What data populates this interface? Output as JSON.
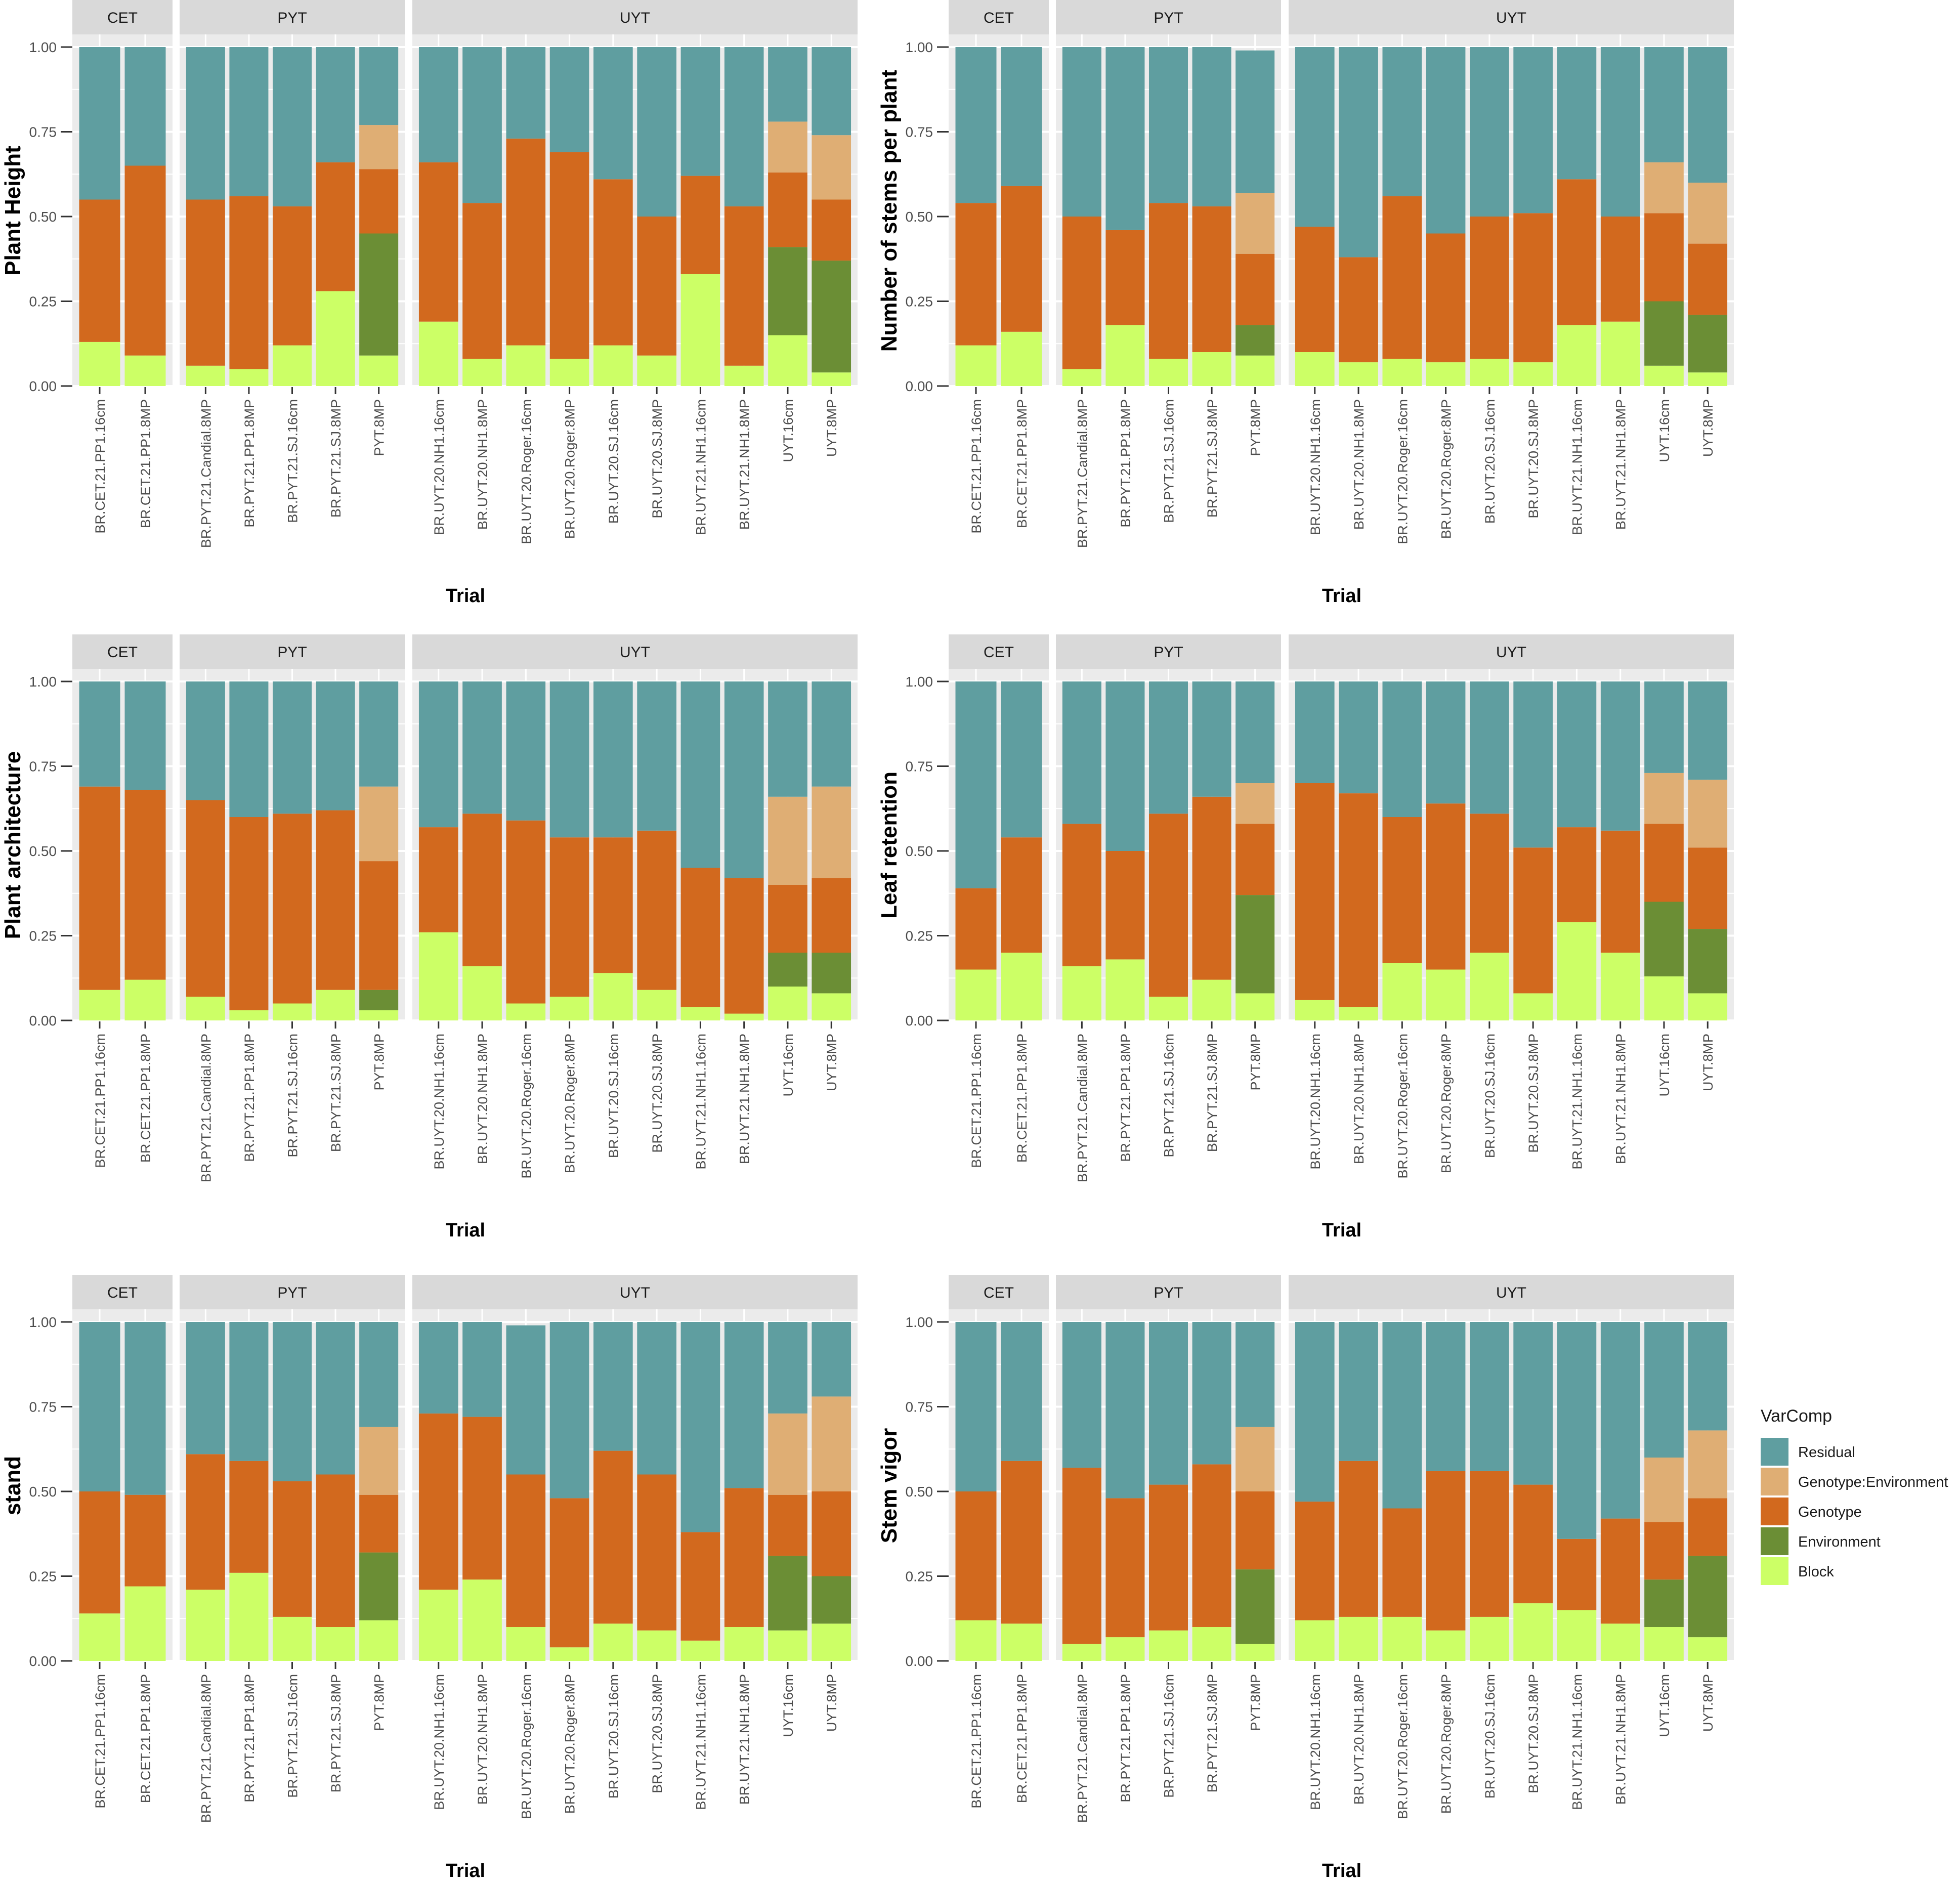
{
  "colors": {
    "Residual": "#5f9ea0",
    "Genotype:Environment": "#dfae74",
    "Genotype": "#d2691e",
    "Environment": "#6b8e35",
    "Block": "#ccff66",
    "panel_bg": "#ebebeb",
    "strip_bg": "#d9d9d9",
    "grid": "#ffffff",
    "text": "#4d4d4d"
  },
  "legend": {
    "title": "VarComp",
    "items": [
      "Residual",
      "Genotype:Environment",
      "Genotype",
      "Environment",
      "Block"
    ]
  },
  "chart_data": [
    {
      "type": "bar",
      "stacked": true,
      "ylabel": "Plant Height",
      "xlabel": "Trial",
      "ylim": [
        0,
        1
      ],
      "yticks": [
        "0.00",
        "0.25",
        "0.50",
        "0.75",
        "1.00"
      ],
      "facets": [
        {
          "name": "CET",
          "categories": [
            "BR.CET.21.PP1.16cm",
            "BR.CET.21.PP1.8MP"
          ]
        },
        {
          "name": "PYT",
          "categories": [
            "BR.PYT.21.Candial.8MP",
            "BR.PYT.21.PP1.8MP",
            "BR.PYT.21.SJ.16cm",
            "BR.PYT.21.SJ.8MP",
            "PYT.8MP"
          ]
        },
        {
          "name": "UYT",
          "categories": [
            "BR.UYT.20.NH1.16cm",
            "BR.UYT.20.NH1.8MP",
            "BR.UYT.20.Roger.16cm",
            "BR.UYT.20.Roger.8MP",
            "BR.UYT.20.SJ.16cm",
            "BR.UYT.20.SJ.8MP",
            "BR.UYT.21.NH1.16cm",
            "BR.UYT.21.NH1.8MP",
            "UYT.16cm",
            "UYT.8MP"
          ]
        }
      ],
      "series": [
        {
          "name": "Block",
          "values": [
            0.13,
            0.09,
            0.06,
            0.05,
            0.12,
            0.28,
            0.09,
            0.19,
            0.08,
            0.12,
            0.08,
            0.12,
            0.09,
            0.33,
            0.06,
            0.15,
            0.04
          ]
        },
        {
          "name": "Environment",
          "values": [
            0,
            0,
            0,
            0,
            0,
            0,
            0.36,
            0,
            0,
            0,
            0,
            0,
            0,
            0,
            0,
            0.26,
            0.33
          ]
        },
        {
          "name": "Genotype",
          "values": [
            0.42,
            0.56,
            0.49,
            0.51,
            0.41,
            0.38,
            0.19,
            0.47,
            0.46,
            0.61,
            0.61,
            0.49,
            0.41,
            0.29,
            0.47,
            0.22,
            0.18
          ]
        },
        {
          "name": "Genotype:Environment",
          "values": [
            0,
            0,
            0,
            0,
            0,
            0,
            0.13,
            0,
            0,
            0,
            0,
            0,
            0,
            0,
            0,
            0.15,
            0.19
          ]
        },
        {
          "name": "Residual",
          "values": [
            0.45,
            0.35,
            0.45,
            0.44,
            0.47,
            0.34,
            0.23,
            0.34,
            0.46,
            0.27,
            0.31,
            0.39,
            0.5,
            0.38,
            0.47,
            0.22,
            0.26
          ]
        }
      ]
    },
    {
      "type": "bar",
      "stacked": true,
      "ylabel": "Number of stems per plant",
      "xlabel": "Trial",
      "ylim": [
        0,
        1
      ],
      "yticks": [
        "0.00",
        "0.25",
        "0.50",
        "0.75",
        "1.00"
      ],
      "facets": [
        {
          "name": "CET",
          "categories": [
            "BR.CET.21.PP1.16cm",
            "BR.CET.21.PP1.8MP"
          ]
        },
        {
          "name": "PYT",
          "categories": [
            "BR.PYT.21.Candial.8MP",
            "BR.PYT.21.PP1.8MP",
            "BR.PYT.21.SJ.16cm",
            "BR.PYT.21.SJ.8MP",
            "PYT.8MP"
          ]
        },
        {
          "name": "UYT",
          "categories": [
            "BR.UYT.20.NH1.16cm",
            "BR.UYT.20.NH1.8MP",
            "BR.UYT.20.Roger.16cm",
            "BR.UYT.20.Roger.8MP",
            "BR.UYT.20.SJ.16cm",
            "BR.UYT.20.SJ.8MP",
            "BR.UYT.21.NH1.16cm",
            "BR.UYT.21.NH1.8MP",
            "UYT.16cm",
            "UYT.8MP"
          ]
        }
      ],
      "series": [
        {
          "name": "Block",
          "values": [
            0.12,
            0.16,
            0.05,
            0.18,
            0.08,
            0.1,
            0.09,
            0.1,
            0.07,
            0.08,
            0.07,
            0.08,
            0.07,
            0.18,
            0.19,
            0.06,
            0.04
          ]
        },
        {
          "name": "Environment",
          "values": [
            0,
            0,
            0,
            0,
            0,
            0,
            0.09,
            0,
            0,
            0,
            0,
            0,
            0,
            0,
            0,
            0.19,
            0.17
          ]
        },
        {
          "name": "Genotype",
          "values": [
            0.42,
            0.43,
            0.45,
            0.28,
            0.46,
            0.43,
            0.21,
            0.37,
            0.31,
            0.48,
            0.38,
            0.42,
            0.44,
            0.43,
            0.31,
            0.26,
            0.21
          ]
        },
        {
          "name": "Genotype:Environment",
          "values": [
            0,
            0,
            0,
            0,
            0,
            0,
            0.18,
            0,
            0,
            0,
            0,
            0,
            0,
            0,
            0,
            0.15,
            0.18
          ]
        },
        {
          "name": "Residual",
          "values": [
            0.46,
            0.41,
            0.5,
            0.54,
            0.46,
            0.47,
            0.42,
            0.53,
            0.62,
            0.44,
            0.55,
            0.5,
            0.49,
            0.39,
            0.5,
            0.34,
            0.4
          ]
        }
      ]
    },
    {
      "type": "bar",
      "stacked": true,
      "ylabel": "Plant architecture",
      "xlabel": "Trial",
      "ylim": [
        0,
        1
      ],
      "yticks": [
        "0.00",
        "0.25",
        "0.50",
        "0.75",
        "1.00"
      ],
      "facets": [
        {
          "name": "CET",
          "categories": [
            "BR.CET.21.PP1.16cm",
            "BR.CET.21.PP1.8MP"
          ]
        },
        {
          "name": "PYT",
          "categories": [
            "BR.PYT.21.Candial.8MP",
            "BR.PYT.21.PP1.8MP",
            "BR.PYT.21.SJ.16cm",
            "BR.PYT.21.SJ.8MP",
            "PYT.8MP"
          ]
        },
        {
          "name": "UYT",
          "categories": [
            "BR.UYT.20.NH1.16cm",
            "BR.UYT.20.NH1.8MP",
            "BR.UYT.20.Roger.16cm",
            "BR.UYT.20.Roger.8MP",
            "BR.UYT.20.SJ.16cm",
            "BR.UYT.20.SJ.8MP",
            "BR.UYT.21.NH1.16cm",
            "BR.UYT.21.NH1.8MP",
            "UYT.16cm",
            "UYT.8MP"
          ]
        }
      ],
      "series": [
        {
          "name": "Block",
          "values": [
            0.09,
            0.12,
            0.07,
            0.03,
            0.05,
            0.09,
            0.03,
            0.26,
            0.16,
            0.05,
            0.07,
            0.14,
            0.09,
            0.04,
            0.02,
            0.1,
            0.08
          ]
        },
        {
          "name": "Environment",
          "values": [
            0,
            0,
            0,
            0,
            0,
            0,
            0.06,
            0,
            0,
            0,
            0,
            0,
            0,
            0,
            0,
            0.1,
            0.12
          ]
        },
        {
          "name": "Genotype",
          "values": [
            0.6,
            0.56,
            0.58,
            0.57,
            0.56,
            0.53,
            0.38,
            0.31,
            0.45,
            0.54,
            0.47,
            0.4,
            0.47,
            0.41,
            0.4,
            0.2,
            0.22
          ]
        },
        {
          "name": "Genotype:Environment",
          "values": [
            0,
            0,
            0,
            0,
            0,
            0,
            0.22,
            0,
            0,
            0,
            0,
            0,
            0,
            0,
            0,
            0.26,
            0.27
          ]
        },
        {
          "name": "Residual",
          "values": [
            0.31,
            0.32,
            0.35,
            0.4,
            0.39,
            0.38,
            0.31,
            0.43,
            0.39,
            0.41,
            0.46,
            0.46,
            0.44,
            0.55,
            0.58,
            0.34,
            0.31
          ]
        }
      ]
    },
    {
      "type": "bar",
      "stacked": true,
      "ylabel": "Leaf retention",
      "xlabel": "Trial",
      "ylim": [
        0,
        1
      ],
      "yticks": [
        "0.00",
        "0.25",
        "0.50",
        "0.75",
        "1.00"
      ],
      "facets": [
        {
          "name": "CET",
          "categories": [
            "BR.CET.21.PP1.16cm",
            "BR.CET.21.PP1.8MP"
          ]
        },
        {
          "name": "PYT",
          "categories": [
            "BR.PYT.21.Candial.8MP",
            "BR.PYT.21.PP1.8MP",
            "BR.PYT.21.SJ.16cm",
            "BR.PYT.21.SJ.8MP",
            "PYT.8MP"
          ]
        },
        {
          "name": "UYT",
          "categories": [
            "BR.UYT.20.NH1.16cm",
            "BR.UYT.20.NH1.8MP",
            "BR.UYT.20.Roger.16cm",
            "BR.UYT.20.Roger.8MP",
            "BR.UYT.20.SJ.16cm",
            "BR.UYT.20.SJ.8MP",
            "BR.UYT.21.NH1.16cm",
            "BR.UYT.21.NH1.8MP",
            "UYT.16cm",
            "UYT.8MP"
          ]
        }
      ],
      "series": [
        {
          "name": "Block",
          "values": [
            0.15,
            0.2,
            0.16,
            0.18,
            0.07,
            0.12,
            0.08,
            0.06,
            0.04,
            0.17,
            0.15,
            0.2,
            0.08,
            0.29,
            0.2,
            0.13,
            0.08
          ]
        },
        {
          "name": "Environment",
          "values": [
            0,
            0,
            0,
            0,
            0,
            0,
            0.29,
            0,
            0,
            0,
            0,
            0,
            0,
            0,
            0,
            0.22,
            0.19
          ]
        },
        {
          "name": "Genotype",
          "values": [
            0.24,
            0.34,
            0.42,
            0.32,
            0.54,
            0.54,
            0.21,
            0.64,
            0.63,
            0.43,
            0.49,
            0.41,
            0.43,
            0.28,
            0.36,
            0.23,
            0.24
          ]
        },
        {
          "name": "Genotype:Environment",
          "values": [
            0,
            0,
            0,
            0,
            0,
            0,
            0.12,
            0,
            0,
            0,
            0,
            0,
            0,
            0,
            0,
            0.15,
            0.2
          ]
        },
        {
          "name": "Residual",
          "values": [
            0.61,
            0.46,
            0.42,
            0.5,
            0.39,
            0.34,
            0.3,
            0.3,
            0.33,
            0.4,
            0.36,
            0.39,
            0.49,
            0.43,
            0.44,
            0.27,
            0.29
          ]
        }
      ]
    },
    {
      "type": "bar",
      "stacked": true,
      "ylabel": "stand",
      "xlabel": "Trial",
      "ylim": [
        0,
        1
      ],
      "yticks": [
        "0.00",
        "0.25",
        "0.50",
        "0.75",
        "1.00"
      ],
      "facets": [
        {
          "name": "CET",
          "categories": [
            "BR.CET.21.PP1.16cm",
            "BR.CET.21.PP1.8MP"
          ]
        },
        {
          "name": "PYT",
          "categories": [
            "BR.PYT.21.Candial.8MP",
            "BR.PYT.21.PP1.8MP",
            "BR.PYT.21.SJ.16cm",
            "BR.PYT.21.SJ.8MP",
            "PYT.8MP"
          ]
        },
        {
          "name": "UYT",
          "categories": [
            "BR.UYT.20.NH1.16cm",
            "BR.UYT.20.NH1.8MP",
            "BR.UYT.20.Roger.16cm",
            "BR.UYT.20.Roger.8MP",
            "BR.UYT.20.SJ.16cm",
            "BR.UYT.20.SJ.8MP",
            "BR.UYT.21.NH1.16cm",
            "BR.UYT.21.NH1.8MP",
            "UYT.16cm",
            "UYT.8MP"
          ]
        }
      ],
      "series": [
        {
          "name": "Block",
          "values": [
            0.14,
            0.22,
            0.21,
            0.26,
            0.13,
            0.1,
            0.12,
            0.21,
            0.24,
            0.1,
            0.04,
            0.11,
            0.09,
            0.06,
            0.1,
            0.09,
            0.11
          ]
        },
        {
          "name": "Environment",
          "values": [
            0,
            0,
            0,
            0,
            0,
            0,
            0.2,
            0,
            0,
            0,
            0,
            0,
            0,
            0,
            0,
            0.22,
            0.14
          ]
        },
        {
          "name": "Genotype",
          "values": [
            0.36,
            0.27,
            0.4,
            0.33,
            0.4,
            0.45,
            0.17,
            0.52,
            0.48,
            0.45,
            0.44,
            0.51,
            0.46,
            0.32,
            0.41,
            0.18,
            0.25
          ]
        },
        {
          "name": "Genotype:Environment",
          "values": [
            0,
            0,
            0,
            0,
            0,
            0,
            0.2,
            0,
            0,
            0,
            0,
            0,
            0,
            0,
            0,
            0.24,
            0.28
          ]
        },
        {
          "name": "Residual",
          "values": [
            0.5,
            0.51,
            0.39,
            0.41,
            0.47,
            0.45,
            0.31,
            0.27,
            0.28,
            0.44,
            0.52,
            0.38,
            0.45,
            0.62,
            0.49,
            0.27,
            0.22
          ]
        }
      ]
    },
    {
      "type": "bar",
      "stacked": true,
      "ylabel": "Stem vigor",
      "xlabel": "Trial",
      "ylim": [
        0,
        1
      ],
      "yticks": [
        "0.00",
        "0.25",
        "0.50",
        "0.75",
        "1.00"
      ],
      "facets": [
        {
          "name": "CET",
          "categories": [
            "BR.CET.21.PP1.16cm",
            "BR.CET.21.PP1.8MP"
          ]
        },
        {
          "name": "PYT",
          "categories": [
            "BR.PYT.21.Candial.8MP",
            "BR.PYT.21.PP1.8MP",
            "BR.PYT.21.SJ.16cm",
            "BR.PYT.21.SJ.8MP",
            "PYT.8MP"
          ]
        },
        {
          "name": "UYT",
          "categories": [
            "BR.UYT.20.NH1.16cm",
            "BR.UYT.20.NH1.8MP",
            "BR.UYT.20.Roger.16cm",
            "BR.UYT.20.Roger.8MP",
            "BR.UYT.20.SJ.16cm",
            "BR.UYT.20.SJ.8MP",
            "BR.UYT.21.NH1.16cm",
            "BR.UYT.21.NH1.8MP",
            "UYT.16cm",
            "UYT.8MP"
          ]
        }
      ],
      "series": [
        {
          "name": "Block",
          "values": [
            0.12,
            0.11,
            0.05,
            0.07,
            0.09,
            0.1,
            0.05,
            0.12,
            0.13,
            0.13,
            0.09,
            0.13,
            0.17,
            0.15,
            0.11,
            0.1,
            0.07
          ]
        },
        {
          "name": "Environment",
          "values": [
            0,
            0,
            0,
            0,
            0,
            0,
            0.22,
            0,
            0,
            0,
            0,
            0,
            0,
            0,
            0,
            0.14,
            0.24
          ]
        },
        {
          "name": "Genotype",
          "values": [
            0.38,
            0.48,
            0.52,
            0.41,
            0.43,
            0.48,
            0.23,
            0.35,
            0.46,
            0.32,
            0.47,
            0.43,
            0.35,
            0.21,
            0.31,
            0.17,
            0.17
          ]
        },
        {
          "name": "Genotype:Environment",
          "values": [
            0,
            0,
            0,
            0,
            0,
            0,
            0.19,
            0,
            0,
            0,
            0,
            0,
            0,
            0,
            0,
            0.19,
            0.2
          ]
        },
        {
          "name": "Residual",
          "values": [
            0.5,
            0.41,
            0.43,
            0.52,
            0.48,
            0.42,
            0.31,
            0.53,
            0.41,
            0.55,
            0.44,
            0.44,
            0.48,
            0.64,
            0.58,
            0.4,
            0.32
          ]
        }
      ]
    }
  ]
}
